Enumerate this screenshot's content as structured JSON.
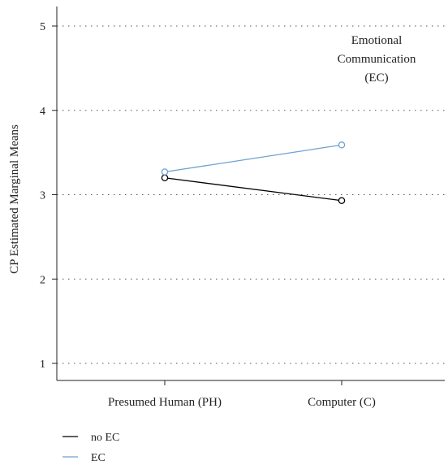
{
  "chart_data": {
    "type": "line",
    "categories": [
      "Presumed Human (PH)",
      "Computer (C)"
    ],
    "series": [
      {
        "name": "no EC",
        "values": [
          3.2,
          2.93
        ],
        "color": "#000000"
      },
      {
        "name": "EC",
        "values": [
          3.27,
          3.59
        ],
        "color": "#6fa1cf"
      }
    ],
    "ylabel": "CP Estimated Marginal Means",
    "xlabel": "",
    "ylim": [
      1,
      5
    ],
    "yticks": [
      1,
      2,
      3,
      4,
      5
    ],
    "grid": "horizontal-dotted",
    "legend_position": "bottom-left",
    "annotation": [
      "Emotional",
      "Communication",
      "(EC)"
    ]
  }
}
